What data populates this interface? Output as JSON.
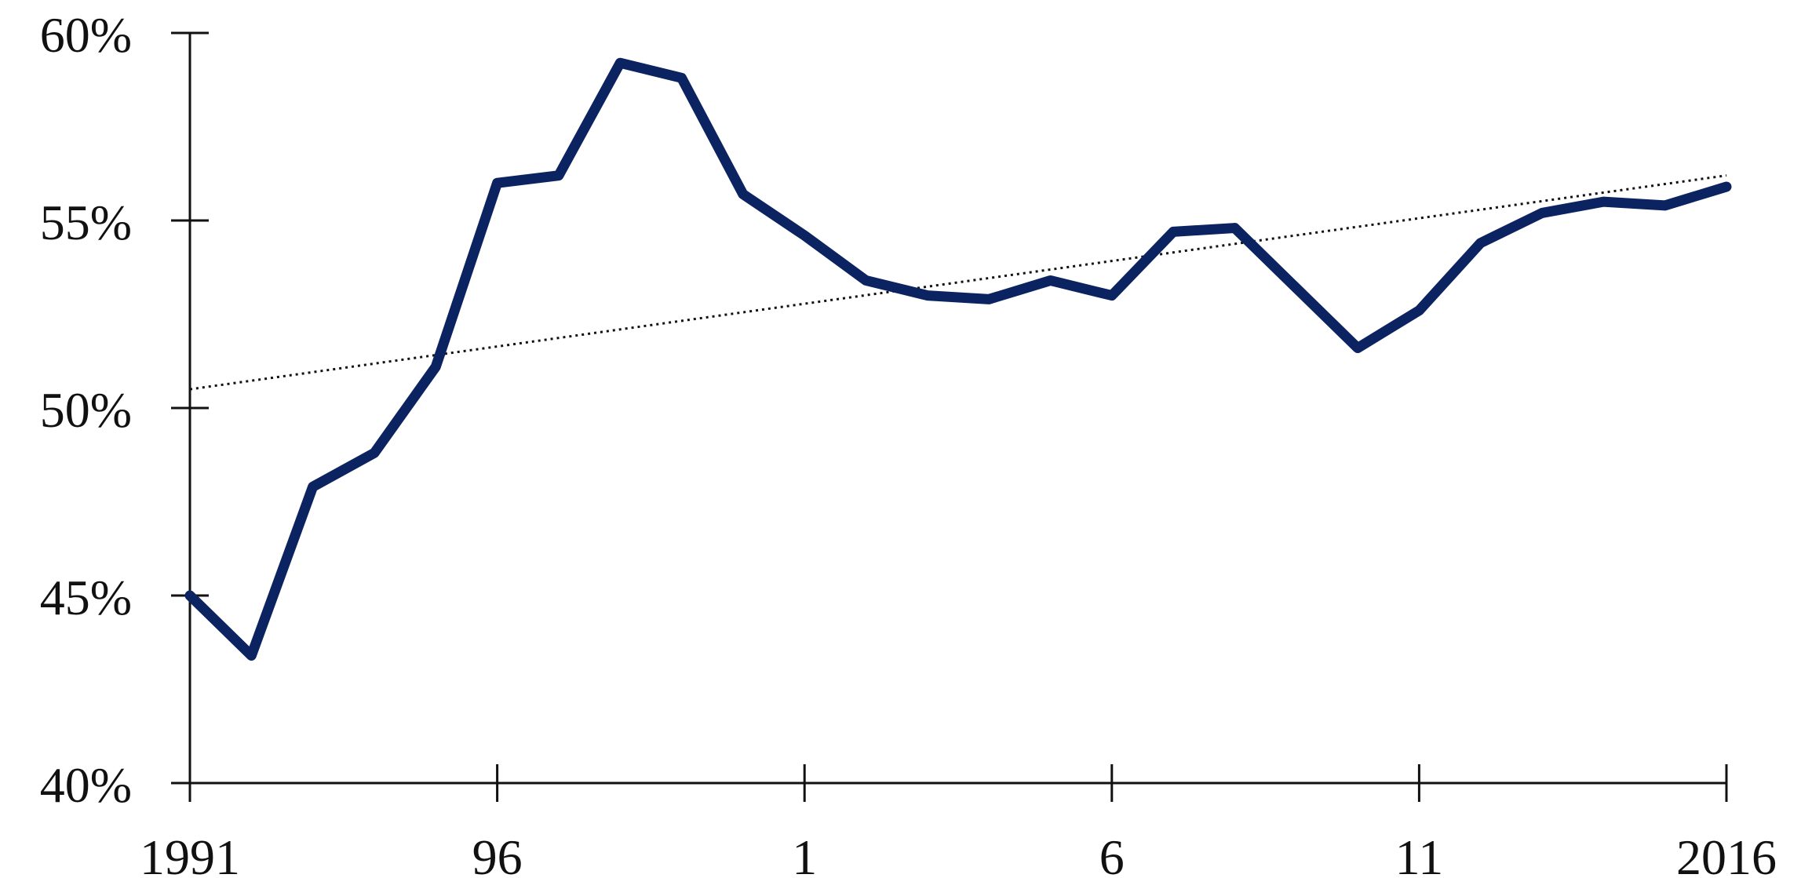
{
  "chart_data": {
    "type": "line",
    "title": "",
    "xlabel": "",
    "ylabel": "",
    "x": [
      1991,
      1992,
      1993,
      1994,
      1995,
      1996,
      1997,
      1998,
      1999,
      2000,
      2001,
      2002,
      2003,
      2004,
      2005,
      2006,
      2007,
      2008,
      2009,
      2010,
      2011,
      2012,
      2013,
      2014,
      2015,
      2016
    ],
    "xlim": [
      1991,
      2016
    ],
    "ylim": [
      40,
      60
    ],
    "grid": false,
    "x_ticks": [
      {
        "value": 1991,
        "label": "1991"
      },
      {
        "value": 1996,
        "label": "96"
      },
      {
        "value": 2001,
        "label": "1"
      },
      {
        "value": 2006,
        "label": "6"
      },
      {
        "value": 2011,
        "label": "11"
      },
      {
        "value": 2016,
        "label": "2016"
      }
    ],
    "y_ticks": [
      {
        "value": 40,
        "label": "40%"
      },
      {
        "value": 45,
        "label": "45%"
      },
      {
        "value": 50,
        "label": "50%"
      },
      {
        "value": 55,
        "label": "55%"
      },
      {
        "value": 60,
        "label": "60%"
      }
    ],
    "series": [
      {
        "values": [
          45.0,
          43.4,
          47.9,
          48.8,
          51.1,
          56.0,
          56.2,
          59.2,
          58.8,
          55.7,
          54.6,
          53.4,
          53.0,
          52.9,
          53.4,
          53.0,
          54.7,
          54.8,
          53.2,
          51.6,
          52.6,
          54.4,
          55.2,
          55.5,
          55.4,
          55.9
        ],
        "color": "#0b2461"
      }
    ],
    "trendline": {
      "style": "dotted",
      "color": "#111111",
      "start": [
        1991,
        50.5
      ],
      "end": [
        2016,
        56.2
      ]
    }
  }
}
